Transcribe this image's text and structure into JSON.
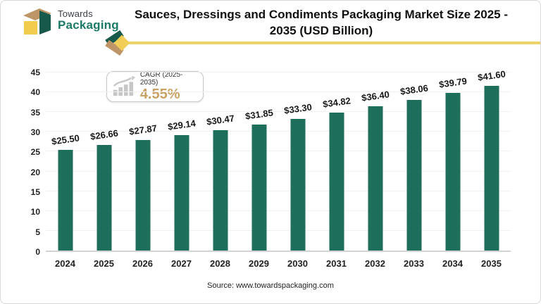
{
  "brand": {
    "name_line1": "Towards",
    "name_line2": "Packaging",
    "colors": {
      "teal_text": "#1b7a66",
      "cube_tan": "#be9566",
      "cube_gold": "#f2cd4d",
      "cube_green": "#17594b",
      "divider_gold": "#edd26a"
    }
  },
  "header": {
    "title_line1": "Sauces, Dressings and Condiments Packaging Market Size 2025 -",
    "title_line2": "2035 (USD Billion)"
  },
  "badge": {
    "label": "CAGR (2025-2035)",
    "value": "4.55%",
    "value_color": "#c8a163",
    "icon": "growth-bars-arrow-icon"
  },
  "chart_data": {
    "type": "bar",
    "title": "Sauces, Dressings and Condiments Packaging Market Size 2025 - 2035 (USD Billion)",
    "categories": [
      "2024",
      "2025",
      "2026",
      "2027",
      "2028",
      "2029",
      "2030",
      "2031",
      "2032",
      "2033",
      "2034",
      "2035"
    ],
    "values": [
      25.5,
      26.66,
      27.87,
      29.14,
      30.47,
      31.85,
      33.3,
      34.82,
      36.4,
      38.06,
      39.79,
      41.6
    ],
    "labels": [
      "$25.50",
      "$26.66",
      "$27.87",
      "$29.14",
      "$30.47",
      "$31.85",
      "$33.30",
      "$34.82",
      "$36.40",
      "$38.06",
      "$39.79",
      "$41.60"
    ],
    "xlabel": "",
    "ylabel": "",
    "ylim": [
      0,
      45
    ],
    "ytick_step": 5,
    "grid": true,
    "legend": false,
    "bar_color": "#1e6e5c"
  },
  "footer": {
    "source": "Source: www.towardspackaging.com"
  }
}
